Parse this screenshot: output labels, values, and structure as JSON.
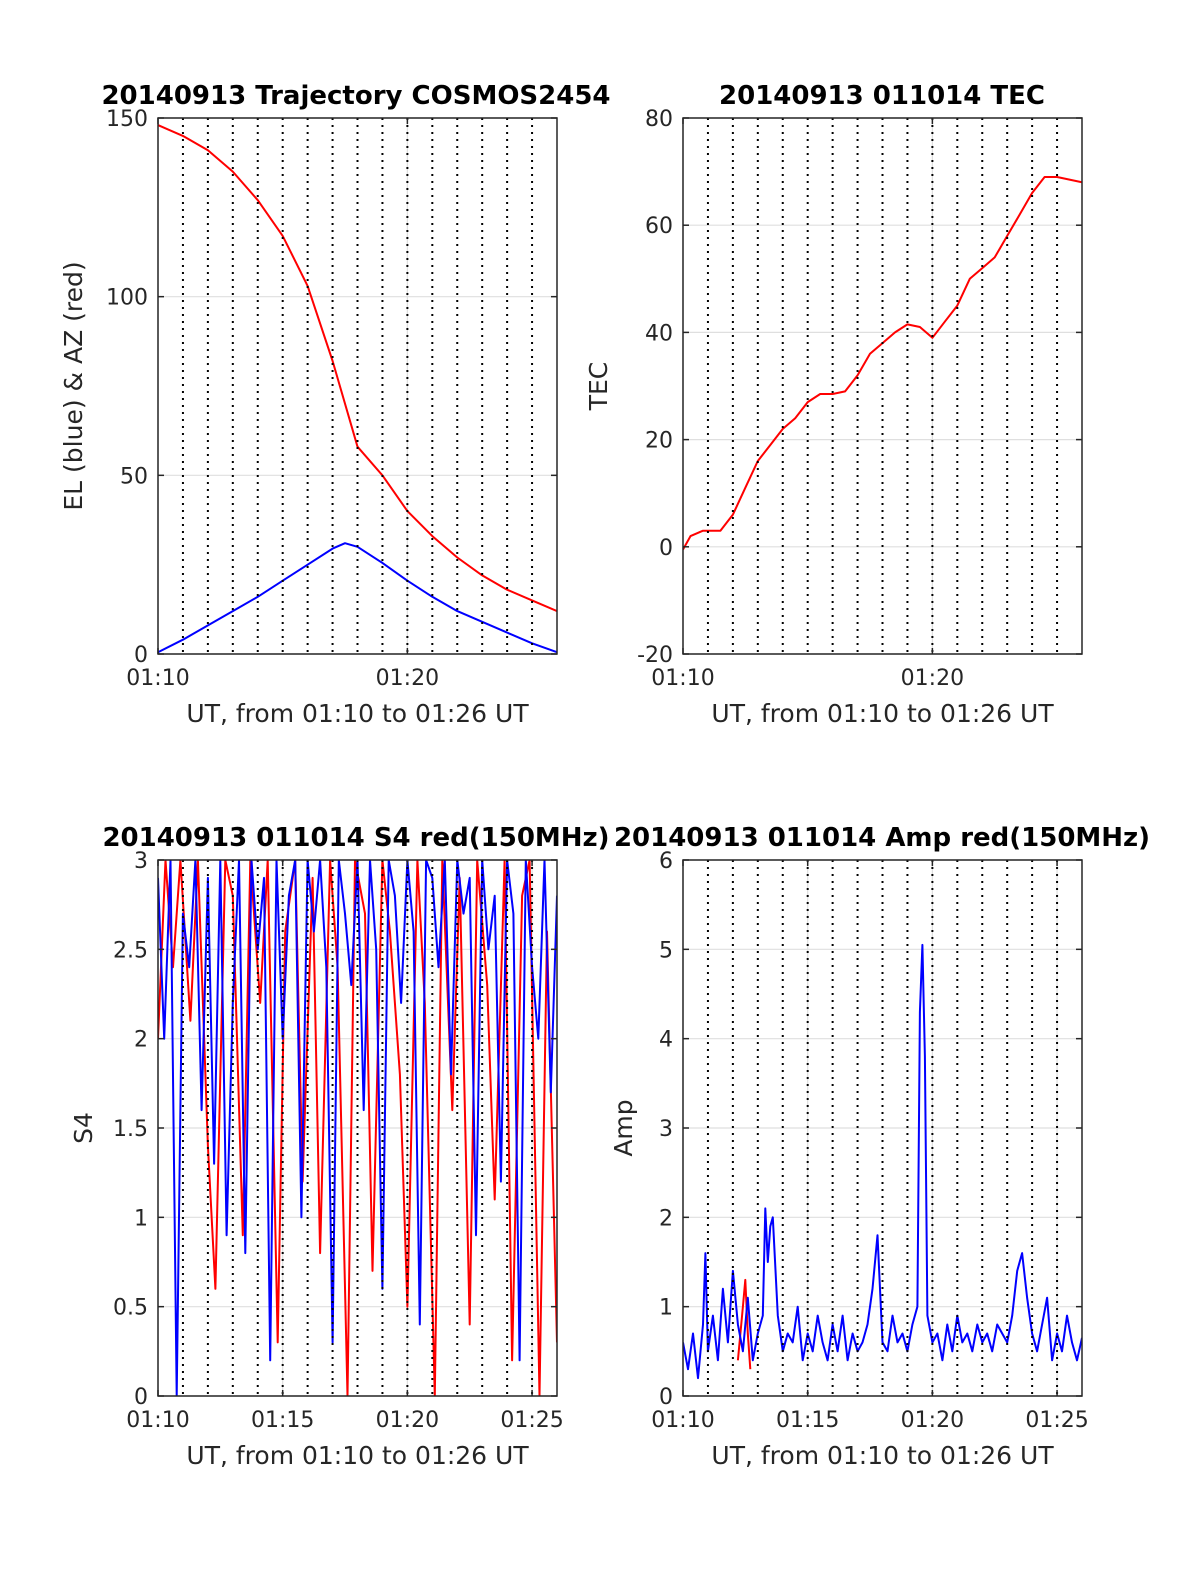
{
  "chart_data": [
    {
      "type": "line",
      "title": "20140913 Trajectory COSMOS2454",
      "xlabel": "UT, from 01:10 to 01:26 UT",
      "ylabel": "EL (blue) & AZ (red)",
      "xlim": [
        0,
        16
      ],
      "ylim": [
        0,
        150
      ],
      "xticks": [
        0,
        10
      ],
      "xtick_labels": [
        "01:10",
        "01:20"
      ],
      "yticks": [
        0,
        50,
        100,
        150
      ],
      "ytick_labels": [
        "0",
        "50",
        "100",
        "150"
      ],
      "grid": true,
      "dotted_vlines": [
        1,
        2,
        3,
        4,
        5,
        6,
        7,
        8,
        9,
        10,
        11,
        12,
        13,
        14,
        15
      ],
      "series": [
        {
          "color": "#ff0000",
          "x": [
            0,
            1,
            2,
            3,
            4,
            5,
            6,
            7,
            8,
            9,
            10,
            11,
            12,
            13,
            14,
            15,
            16
          ],
          "values": [
            148,
            145,
            141,
            135,
            127,
            117,
            103,
            82,
            58,
            50,
            40,
            33,
            27,
            22,
            18,
            15,
            12
          ]
        },
        {
          "color": "#0000ff",
          "x": [
            0,
            1,
            2,
            3,
            4,
            5,
            6,
            7,
            7.5,
            8,
            9,
            10,
            11,
            12,
            13,
            14,
            15,
            16
          ],
          "values": [
            0.5,
            4,
            8,
            12,
            16,
            20.5,
            25,
            29.5,
            31,
            30,
            25.5,
            20.5,
            16,
            12,
            9,
            6,
            3,
            0.5
          ]
        }
      ]
    },
    {
      "type": "line",
      "title": "20140913 011014 TEC",
      "xlabel": "UT, from 01:10 to 01:26 UT",
      "ylabel": "TEC",
      "xlim": [
        0,
        16
      ],
      "ylim": [
        -20,
        80
      ],
      "xticks": [
        0,
        10
      ],
      "xtick_labels": [
        "01:10",
        "01:20"
      ],
      "yticks": [
        -20,
        0,
        20,
        40,
        60,
        80
      ],
      "ytick_labels": [
        "-20",
        "0",
        "20",
        "40",
        "60",
        "80"
      ],
      "grid": true,
      "dotted_vlines": [
        1,
        2,
        3,
        4,
        5,
        6,
        7,
        8,
        9,
        10,
        11,
        12,
        13,
        14,
        15
      ],
      "series": [
        {
          "color": "#ff0000",
          "x": [
            0,
            0.3,
            0.8,
            1.5,
            2,
            2.5,
            3,
            3.5,
            4,
            4.5,
            5,
            5.5,
            6,
            6.5,
            7,
            7.5,
            8,
            8.5,
            9,
            9.5,
            10,
            10.5,
            11,
            11.5,
            12,
            12.5,
            13,
            13.5,
            14,
            14.5,
            15,
            15.5,
            16
          ],
          "values": [
            -0.5,
            2,
            3,
            3,
            6,
            11,
            16,
            19,
            22,
            24,
            27,
            28.5,
            28.5,
            29,
            32,
            36,
            38,
            40,
            41.5,
            41,
            39,
            42,
            45,
            50,
            52,
            54,
            58,
            62,
            66,
            69,
            69,
            68.5,
            68
          ]
        }
      ]
    },
    {
      "type": "line",
      "title": "20140913 011014 S4 red(150MHz)",
      "xlabel": "UT, from 01:10 to 01:26 UT",
      "ylabel": "S4",
      "xlim": [
        0,
        16
      ],
      "ylim": [
        0,
        3
      ],
      "xticks": [
        0,
        5,
        10,
        15
      ],
      "xtick_labels": [
        "01:10",
        "01:15",
        "01:20",
        "01:25"
      ],
      "yticks": [
        0,
        0.5,
        1,
        1.5,
        2,
        2.5,
        3
      ],
      "ytick_labels": [
        "0",
        "0.5",
        "1",
        "1.5",
        "2",
        "2.5",
        "3"
      ],
      "grid": true,
      "dotted_vlines": [
        1,
        2,
        3,
        4,
        5,
        6,
        7,
        8,
        9,
        10,
        11,
        12,
        13,
        14,
        15
      ],
      "series": [
        {
          "color": "#ff0000",
          "x": [
            0,
            0.3,
            0.6,
            0.9,
            1.3,
            1.6,
            2.0,
            2.3,
            2.7,
            3.0,
            3.4,
            3.7,
            4.1,
            4.4,
            4.8,
            5.1,
            5.5,
            5.8,
            6.2,
            6.5,
            6.9,
            7.2,
            7.6,
            7.9,
            8.3,
            8.6,
            9.0,
            9.3,
            9.7,
            10.0,
            10.4,
            10.7,
            11.1,
            11.4,
            11.8,
            12.1,
            12.5,
            12.8,
            13.2,
            13.5,
            13.9,
            14.2,
            14.6,
            14.9,
            15.3,
            15.6,
            16
          ],
          "values": [
            2.0,
            3.0,
            2.4,
            3.0,
            2.1,
            3.0,
            1.4,
            0.6,
            3.0,
            2.8,
            0.9,
            3.0,
            2.2,
            3.0,
            0.3,
            2.6,
            3.0,
            1.2,
            2.9,
            0.8,
            3.0,
            2.4,
            0,
            3.0,
            2.7,
            0.7,
            3.0,
            2.6,
            1.8,
            0.5,
            3.0,
            2.2,
            0,
            3.0,
            1.6,
            2.9,
            0.4,
            3.0,
            2.3,
            1.1,
            3.0,
            0.2,
            2.8,
            3.0,
            0,
            2.6,
            0.3
          ]
        },
        {
          "color": "#0000ff",
          "x": [
            0,
            0.25,
            0.5,
            0.75,
            1.0,
            1.25,
            1.5,
            1.75,
            2.0,
            2.25,
            2.5,
            2.75,
            3.0,
            3.25,
            3.5,
            3.75,
            4.0,
            4.25,
            4.5,
            4.75,
            5.0,
            5.25,
            5.5,
            5.75,
            6.0,
            6.25,
            6.5,
            6.75,
            7.0,
            7.25,
            7.5,
            7.75,
            8.0,
            8.25,
            8.5,
            8.75,
            9.0,
            9.25,
            9.5,
            9.75,
            10.0,
            10.25,
            10.5,
            10.75,
            11.0,
            11.25,
            11.5,
            11.75,
            12.0,
            12.25,
            12.5,
            12.75,
            13.0,
            13.25,
            13.5,
            13.75,
            14.0,
            14.25,
            14.5,
            14.75,
            15.0,
            15.25,
            15.5,
            15.75,
            16
          ],
          "values": [
            2.9,
            2.0,
            3.0,
            0,
            2.7,
            2.4,
            3.0,
            1.6,
            2.9,
            1.3,
            3.0,
            0.9,
            2.2,
            3.0,
            0.8,
            3.0,
            2.5,
            2.9,
            0.2,
            3.0,
            2.0,
            2.8,
            3.0,
            1.0,
            3.0,
            2.6,
            3.0,
            2.4,
            0.3,
            3.0,
            2.7,
            2.3,
            3.0,
            1.6,
            3.0,
            2.5,
            0.6,
            3.0,
            2.8,
            2.2,
            3.0,
            2.6,
            0.4,
            3.0,
            2.9,
            2.4,
            3.0,
            1.8,
            3.0,
            2.7,
            2.9,
            0.9,
            3.0,
            2.5,
            2.8,
            1.2,
            3.0,
            2.7,
            0.2,
            3.0,
            2.4,
            2.0,
            3.0,
            1.7,
            2.8
          ]
        }
      ]
    },
    {
      "type": "line",
      "title": "20140913 011014 Amp red(150MHz)",
      "xlabel": "UT, from 01:10 to 01:26 UT",
      "ylabel": "Amp",
      "xlim": [
        0,
        16
      ],
      "ylim": [
        0,
        6
      ],
      "xticks": [
        0,
        5,
        10,
        15
      ],
      "xtick_labels": [
        "01:10",
        "01:15",
        "01:20",
        "01:25"
      ],
      "yticks": [
        0,
        1,
        2,
        3,
        4,
        5,
        6
      ],
      "ytick_labels": [
        "0",
        "1",
        "2",
        "3",
        "4",
        "5",
        "6"
      ],
      "grid": true,
      "dotted_vlines": [
        1,
        2,
        3,
        4,
        5,
        6,
        7,
        8,
        9,
        10,
        11,
        12,
        13,
        14,
        15
      ],
      "series": [
        {
          "color": "#ff0000",
          "x": [
            2.2,
            2.4,
            2.5,
            2.6,
            2.7
          ],
          "values": [
            0.4,
            1.0,
            1.3,
            0.7,
            0.3
          ]
        },
        {
          "color": "#0000ff",
          "x": [
            0,
            0.2,
            0.4,
            0.6,
            0.8,
            0.9,
            1.0,
            1.2,
            1.4,
            1.6,
            1.8,
            2.0,
            2.2,
            2.4,
            2.6,
            2.8,
            3.0,
            3.2,
            3.3,
            3.4,
            3.5,
            3.6,
            3.8,
            4.0,
            4.2,
            4.4,
            4.6,
            4.8,
            5.0,
            5.2,
            5.4,
            5.6,
            5.8,
            6.0,
            6.2,
            6.4,
            6.6,
            6.8,
            7.0,
            7.2,
            7.4,
            7.6,
            7.8,
            8.0,
            8.2,
            8.4,
            8.6,
            8.8,
            9.0,
            9.2,
            9.4,
            9.5,
            9.6,
            9.7,
            9.8,
            10.0,
            10.2,
            10.4,
            10.6,
            10.8,
            11.0,
            11.2,
            11.4,
            11.6,
            11.8,
            12.0,
            12.2,
            12.4,
            12.6,
            12.8,
            13.0,
            13.2,
            13.4,
            13.6,
            13.8,
            14.0,
            14.2,
            14.4,
            14.6,
            14.8,
            15.0,
            15.2,
            15.4,
            15.6,
            15.8,
            16
          ],
          "values": [
            0.6,
            0.3,
            0.7,
            0.2,
            0.8,
            1.6,
            0.5,
            0.9,
            0.4,
            1.2,
            0.6,
            1.4,
            0.8,
            0.5,
            1.1,
            0.4,
            0.7,
            0.9,
            2.1,
            1.5,
            1.9,
            2.0,
            0.9,
            0.5,
            0.7,
            0.6,
            1.0,
            0.4,
            0.7,
            0.5,
            0.9,
            0.6,
            0.4,
            0.8,
            0.5,
            0.9,
            0.4,
            0.7,
            0.5,
            0.6,
            0.8,
            1.2,
            1.8,
            0.6,
            0.5,
            0.9,
            0.6,
            0.7,
            0.5,
            0.8,
            1.0,
            4.3,
            5.05,
            3.8,
            0.9,
            0.6,
            0.7,
            0.4,
            0.8,
            0.5,
            0.9,
            0.6,
            0.7,
            0.5,
            0.8,
            0.6,
            0.7,
            0.5,
            0.8,
            0.7,
            0.6,
            0.9,
            1.4,
            1.6,
            1.1,
            0.7,
            0.5,
            0.8,
            1.1,
            0.4,
            0.7,
            0.5,
            0.9,
            0.6,
            0.4,
            0.65
          ]
        }
      ]
    }
  ]
}
